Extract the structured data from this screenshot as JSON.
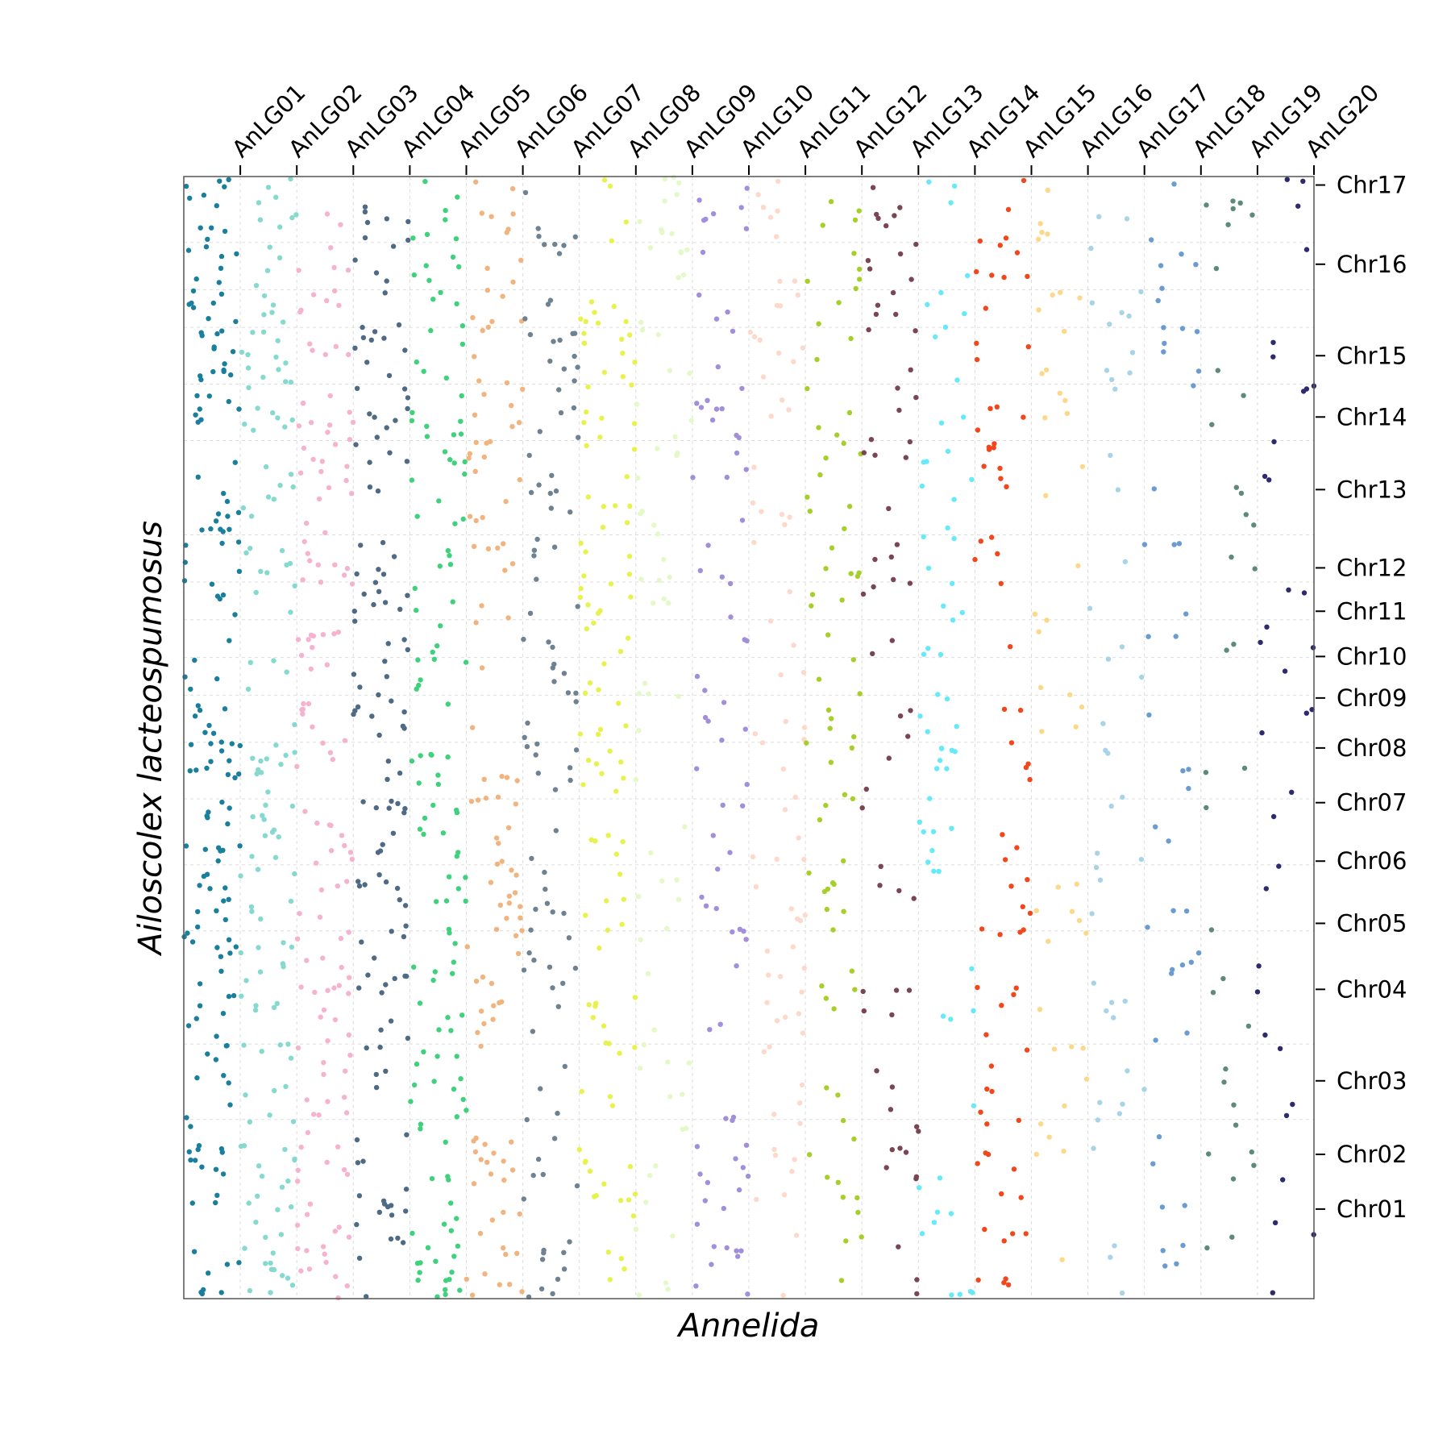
{
  "chart_data": {
    "type": "scatter",
    "title": "",
    "xlabel": "Annelida",
    "ylabel": "Ailoscolex lacteospumosus",
    "x_axis_position": "top",
    "y_axis_position": "right",
    "grid": true,
    "legend": "none",
    "x_categories": [
      "AnLG01",
      "AnLG02",
      "AnLG03",
      "AnLG04",
      "AnLG05",
      "AnLG06",
      "AnLG07",
      "AnLG08",
      "AnLG09",
      "AnLG10",
      "AnLG11",
      "AnLG12",
      "AnLG13",
      "AnLG14",
      "AnLG15",
      "AnLG16",
      "AnLG17",
      "AnLG18",
      "AnLG19",
      "AnLG20"
    ],
    "y_categories": [
      "Chr01",
      "Chr02",
      "Chr03",
      "Chr04",
      "Chr05",
      "Chr06",
      "Chr07",
      "Chr08",
      "Chr09",
      "Chr10",
      "Chr11",
      "Chr12",
      "Chr13",
      "Chr14",
      "Chr15",
      "Chr16",
      "Chr17"
    ],
    "y_tick_positions": [
      0.095,
      0.153,
      0.231,
      0.328,
      0.398,
      0.464,
      0.526,
      0.584,
      0.637,
      0.681,
      0.729,
      0.775,
      0.858,
      0.935,
      1.0,
      1.097,
      1.181
    ],
    "y_chromosome_boundaries": [
      0.0,
      0.19,
      0.27,
      0.39,
      0.46,
      0.53,
      0.59,
      0.64,
      0.68,
      0.72,
      0.76,
      0.81,
      0.91,
      0.97,
      1.03,
      1.07,
      1.12,
      1.19
    ],
    "ylim": [
      0.0,
      1.19
    ],
    "x_tick_positions": [
      0.05,
      0.1,
      0.15,
      0.2,
      0.25,
      0.3,
      0.35,
      0.4,
      0.45,
      0.5,
      0.55,
      0.6,
      0.65,
      0.7,
      0.75,
      0.8,
      0.85,
      0.9,
      0.95,
      1.0
    ],
    "x_group_boundaries": [
      0.0,
      0.05,
      0.1,
      0.15,
      0.2,
      0.25,
      0.3,
      0.35,
      0.4,
      0.45,
      0.5,
      0.55,
      0.6,
      0.65,
      0.7,
      0.75,
      0.8,
      0.85,
      0.9,
      0.95,
      1.0
    ],
    "xlim": [
      0.0,
      1.0
    ],
    "series": [
      {
        "group": "AnLG01",
        "color": "#1a7f9c",
        "count": 170
      },
      {
        "group": "AnLG02",
        "color": "#86d9cf",
        "count": 140
      },
      {
        "group": "AnLG03",
        "color": "#f5b3cf",
        "count": 140
      },
      {
        "group": "AnLG04",
        "color": "#4f6a84",
        "count": 130
      },
      {
        "group": "AnLG05",
        "color": "#3fd17c",
        "count": 130
      },
      {
        "group": "AnLG06",
        "color": "#f2b47f",
        "count": 115
      },
      {
        "group": "AnLG07",
        "color": "#6f8292",
        "count": 100
      },
      {
        "group": "AnLG08",
        "color": "#e8f24d",
        "count": 110
      },
      {
        "group": "AnLG09",
        "color": "#e3fac8",
        "count": 70
      },
      {
        "group": "AnLG10",
        "color": "#a28fdb",
        "count": 80
      },
      {
        "group": "AnLG11",
        "color": "#fcd9ca",
        "count": 75
      },
      {
        "group": "AnLG12",
        "color": "#a6cf2a",
        "count": 75
      },
      {
        "group": "AnLG13",
        "color": "#7a4654",
        "count": 65
      },
      {
        "group": "AnLG14",
        "color": "#66eafa",
        "count": 65
      },
      {
        "group": "AnLG15",
        "color": "#f2471c",
        "count": 75
      },
      {
        "group": "AnLG16",
        "color": "#fcd98a",
        "count": 45
      },
      {
        "group": "AnLG17",
        "color": "#a9d3e6",
        "count": 45
      },
      {
        "group": "AnLG18",
        "color": "#6a9bd1",
        "count": 45
      },
      {
        "group": "AnLG19",
        "color": "#5e8a7a",
        "count": 35
      },
      {
        "group": "AnLG20",
        "color": "#2e2a6e",
        "count": 35
      }
    ]
  }
}
